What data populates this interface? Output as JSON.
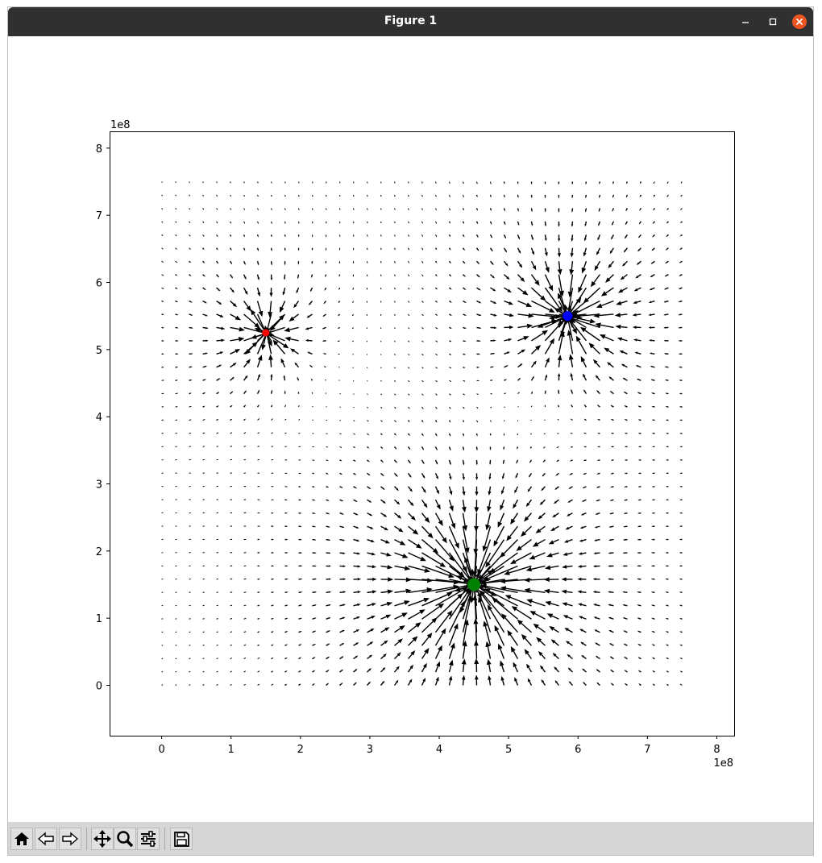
{
  "window": {
    "title": "Figure 1"
  },
  "colors": {
    "titlebar": "#303030",
    "close": "#e95420",
    "toolbar": "#d6d6d6"
  },
  "toolbar": {
    "buttons": [
      "home-icon",
      "back-icon",
      "forward-icon",
      "pan-icon",
      "zoom-icon",
      "configure-subplots-icon",
      "save-icon"
    ]
  },
  "chart_data": {
    "type": "quiver",
    "x_grid": {
      "start": 0,
      "stop": 75000000,
      "step": 2000000
    },
    "y_grid": {
      "start": 0,
      "stop": 75000000,
      "step": 2000000
    },
    "xlim": [
      -75000000,
      825000000
    ],
    "ylim": [
      -75000000,
      825000000
    ],
    "x_ticks": [
      0,
      1,
      2,
      3,
      4,
      5,
      6,
      7,
      8
    ],
    "y_ticks": [
      0,
      1,
      2,
      3,
      4,
      5,
      6,
      7,
      8
    ],
    "x_offset_label": "1e8",
    "y_offset_label": "1e8",
    "bodies": [
      {
        "x": 150000000,
        "y": 525000000,
        "color": "#ff0000",
        "size": "small"
      },
      {
        "x": 585000000,
        "y": 550000000,
        "color": "#0000ff",
        "size": "medium"
      },
      {
        "x": 450000000,
        "y": 150000000,
        "color": "#008000",
        "size": "large"
      }
    ],
    "field_strengths": [
      1,
      2.2,
      5.5
    ],
    "arrow_color": "#000000"
  }
}
